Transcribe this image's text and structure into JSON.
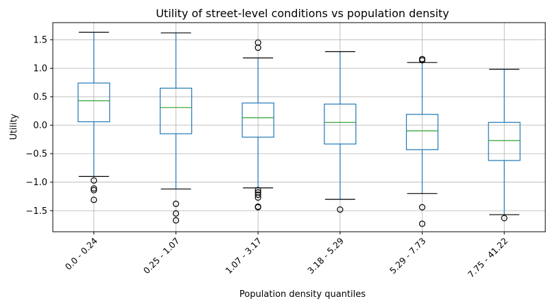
{
  "chart_data": {
    "type": "box",
    "title": "Utility of street-level conditions vs population density",
    "xlabel": "Population density quantiles",
    "ylabel": "Utility",
    "ylim": [
      -1.87,
      1.8
    ],
    "yticks": [
      -1.5,
      -1.0,
      -0.5,
      0.0,
      0.5,
      1.0,
      1.5
    ],
    "ytick_labels": [
      "−1.5",
      "−1.0",
      "−0.5",
      "0.0",
      "0.5",
      "1.0",
      "1.5"
    ],
    "grid": true,
    "categories": [
      "0.0 - 0.24",
      "0.25 - 1.07",
      "1.07 - 3.17",
      "3.18 - 5.29",
      "5.29 - 7.73",
      "7.75 - 41.22"
    ],
    "boxes": [
      {
        "whisker_low": -0.9,
        "q1": 0.06,
        "median": 0.43,
        "q3": 0.74,
        "whisker_high": 1.63,
        "outliers": [
          -0.97,
          -1.11,
          -1.14,
          -1.31
        ]
      },
      {
        "whisker_low": -1.12,
        "q1": -0.15,
        "median": 0.31,
        "q3": 0.65,
        "whisker_high": 1.62,
        "outliers": [
          -1.38,
          -1.55,
          -1.67
        ]
      },
      {
        "whisker_low": -1.1,
        "q1": -0.21,
        "median": 0.13,
        "q3": 0.39,
        "whisker_high": 1.18,
        "outliers": [
          1.45,
          1.36,
          -1.14,
          -1.18,
          -1.22,
          -1.27,
          -1.43,
          -1.44
        ]
      },
      {
        "whisker_low": -1.3,
        "q1": -0.33,
        "median": 0.05,
        "q3": 0.37,
        "whisker_high": 1.29,
        "outliers": [
          -1.48
        ]
      },
      {
        "whisker_low": -1.2,
        "q1": -0.43,
        "median": -0.1,
        "q3": 0.19,
        "whisker_high": 1.1,
        "outliers": [
          1.16,
          1.14,
          -1.44,
          -1.73
        ]
      },
      {
        "whisker_low": -1.57,
        "q1": -0.62,
        "median": -0.27,
        "q3": 0.05,
        "whisker_high": 0.98,
        "outliers": [
          -1.63
        ]
      }
    ],
    "colors": {
      "box": "#1f77b4",
      "median": "#2ca02c",
      "grid": "#b0b0b0",
      "axis": "#000000"
    }
  }
}
